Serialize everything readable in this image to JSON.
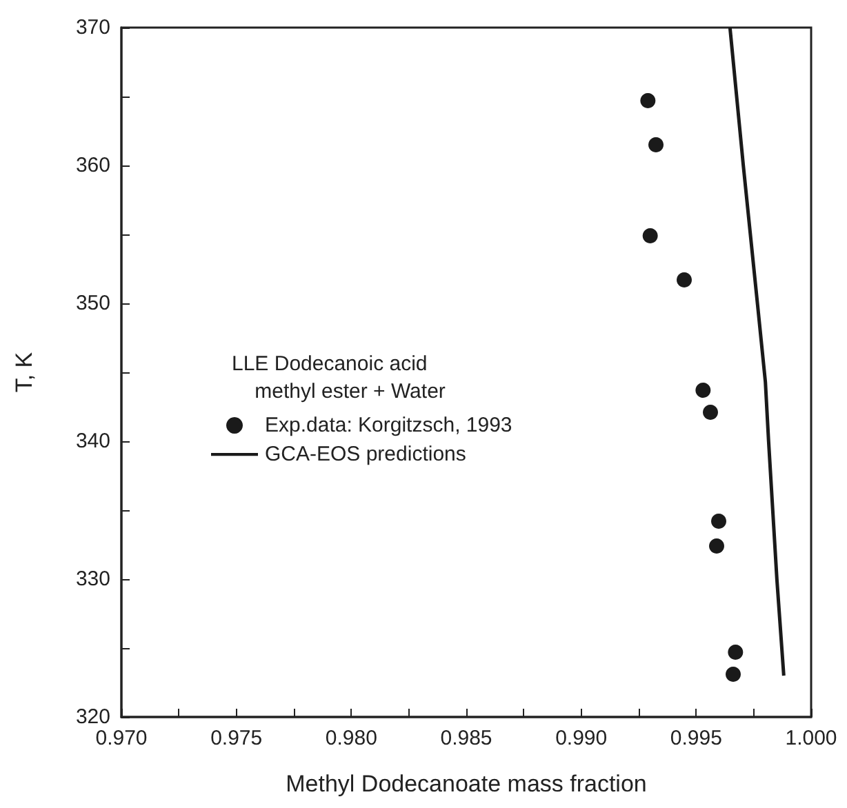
{
  "chart_data": {
    "type": "scatter",
    "xlabel": "Methyl Dodecanoate mass fraction",
    "ylabel": "T, K",
    "legend_title": "LLE Dodecanoic acid\n    methyl ester + Water",
    "series": [
      {
        "name": "Exp.data: Korgitzsch, 1993",
        "color": "#1a1a1a",
        "marker": "circle",
        "x": [
          0.9929,
          0.99325,
          0.993,
          0.99448,
          0.9953,
          0.99562,
          0.99598,
          0.99589,
          0.99671,
          0.99661
        ],
        "values": [
          364.7,
          361.5,
          354.9,
          351.7,
          343.7,
          342.1,
          334.2,
          332.4,
          324.7,
          323.1
        ]
      },
      {
        "name": "GCA-EOS predictions",
        "type": "line",
        "color": "#1a1a1a",
        "marker": "none",
        "line_style": "solid",
        "x": [
          0.99647,
          0.99705,
          0.99767,
          0.99801,
          0.99815,
          0.99851,
          0.99881
        ],
        "values": [
          370,
          360,
          349.9,
          344.3,
          340,
          330,
          323
        ]
      }
    ],
    "xlim": [
      0.97,
      1.0
    ],
    "xticks": [
      {
        "value": 0.97,
        "label": "0.970"
      },
      {
        "value": 0.9725,
        "label": null
      },
      {
        "value": 0.975,
        "label": "0.975"
      },
      {
        "value": 0.9775,
        "label": null
      },
      {
        "value": 0.98,
        "label": "0.980"
      },
      {
        "value": 0.9825,
        "label": null
      },
      {
        "value": 0.985,
        "label": "0.985"
      },
      {
        "value": 0.9875,
        "label": null
      },
      {
        "value": 0.99,
        "label": "0.990"
      },
      {
        "value": 0.9925,
        "label": null
      },
      {
        "value": 0.995,
        "label": "0.995"
      },
      {
        "value": 0.9975,
        "label": null
      },
      {
        "value": 1.0,
        "label": "1.000"
      }
    ],
    "ylim": [
      320,
      370
    ],
    "yticks": [
      320,
      {
        "value": 325,
        "label": null
      },
      330,
      {
        "value": 335,
        "label": null
      },
      340,
      {
        "value": 345,
        "label": null
      },
      350,
      {
        "value": 355,
        "label": null
      },
      360,
      {
        "value": 365,
        "label": null
      },
      370
    ],
    "grid": false,
    "legend": "center"
  }
}
